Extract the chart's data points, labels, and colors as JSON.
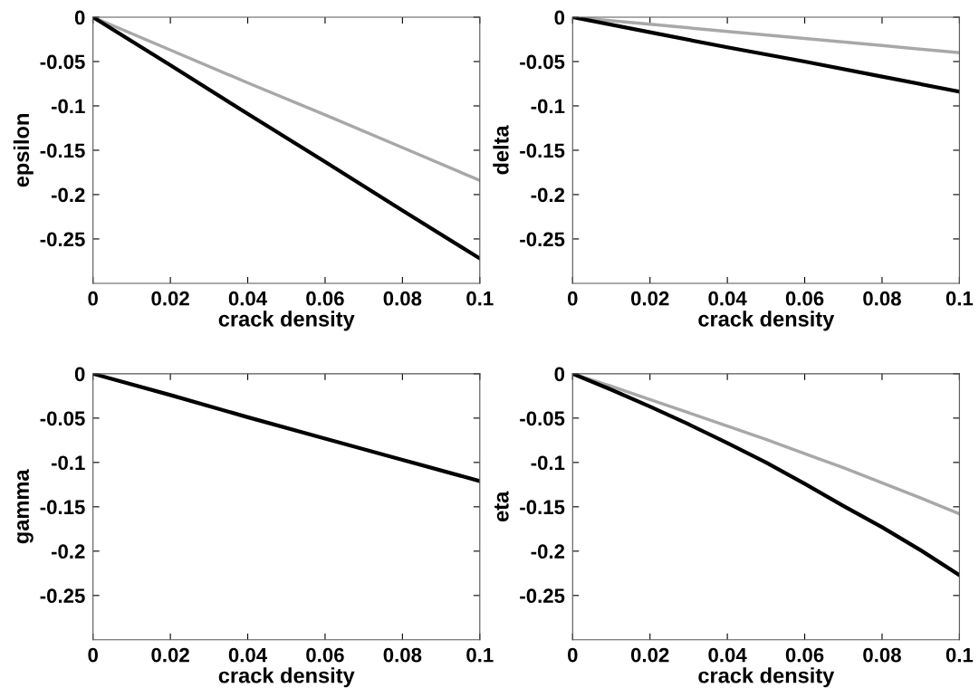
{
  "chart_data": [
    {
      "type": "line",
      "xlabel": "crack density",
      "ylabel": "epsilon",
      "xlim": [
        0,
        0.1
      ],
      "ylim": [
        -0.3,
        0
      ],
      "xticks": [
        0,
        0.02,
        0.04,
        0.06,
        0.08,
        0.1
      ],
      "yticks": [
        0,
        -0.05,
        -0.1,
        -0.15,
        -0.2,
        -0.25
      ],
      "grid": false,
      "x": [
        0,
        0.02,
        0.04,
        0.06,
        0.08,
        0.1
      ],
      "series": [
        {
          "color": "#a8a8a8",
          "values": [
            0,
            -0.037,
            -0.074,
            -0.11,
            -0.147,
            -0.184
          ]
        },
        {
          "color": "#000000",
          "values": [
            0,
            -0.054,
            -0.109,
            -0.163,
            -0.218,
            -0.272
          ]
        }
      ]
    },
    {
      "type": "line",
      "xlabel": "crack density",
      "ylabel": "delta",
      "xlim": [
        0,
        0.1
      ],
      "ylim": [
        -0.3,
        0
      ],
      "xticks": [
        0,
        0.02,
        0.04,
        0.06,
        0.08,
        0.1
      ],
      "yticks": [
        0,
        -0.05,
        -0.1,
        -0.15,
        -0.2,
        -0.25
      ],
      "grid": false,
      "x": [
        0,
        0.02,
        0.04,
        0.06,
        0.08,
        0.1
      ],
      "series": [
        {
          "color": "#a8a8a8",
          "values": [
            0,
            -0.008,
            -0.016,
            -0.024,
            -0.032,
            -0.04
          ]
        },
        {
          "color": "#000000",
          "values": [
            0,
            -0.017,
            -0.034,
            -0.05,
            -0.067,
            -0.084
          ]
        }
      ]
    },
    {
      "type": "line",
      "xlabel": "crack density",
      "ylabel": "gamma",
      "xlim": [
        0,
        0.1
      ],
      "ylim": [
        -0.3,
        0
      ],
      "xticks": [
        0,
        0.02,
        0.04,
        0.06,
        0.08,
        0.1
      ],
      "yticks": [
        0,
        -0.05,
        -0.1,
        -0.15,
        -0.2,
        -0.25
      ],
      "grid": false,
      "x": [
        0,
        0.02,
        0.04,
        0.06,
        0.08,
        0.1
      ],
      "series": [
        {
          "color": "#000000",
          "values": [
            0,
            -0.024,
            -0.049,
            -0.073,
            -0.097,
            -0.121
          ]
        }
      ]
    },
    {
      "type": "line",
      "xlabel": "crack density",
      "ylabel": "eta",
      "xlim": [
        0,
        0.1
      ],
      "ylim": [
        -0.3,
        0
      ],
      "xticks": [
        0,
        0.02,
        0.04,
        0.06,
        0.08,
        0.1
      ],
      "yticks": [
        0,
        -0.05,
        -0.1,
        -0.15,
        -0.2,
        -0.25
      ],
      "grid": false,
      "x": [
        0,
        0.01,
        0.02,
        0.03,
        0.04,
        0.05,
        0.06,
        0.07,
        0.08,
        0.09,
        0.1
      ],
      "series": [
        {
          "color": "#a8a8a8",
          "values": [
            0,
            -0.014,
            -0.029,
            -0.044,
            -0.059,
            -0.074,
            -0.09,
            -0.106,
            -0.123,
            -0.14,
            -0.158
          ]
        },
        {
          "color": "#000000",
          "values": [
            0,
            -0.018,
            -0.037,
            -0.057,
            -0.078,
            -0.1,
            -0.124,
            -0.149,
            -0.173,
            -0.199,
            -0.227
          ]
        }
      ]
    }
  ]
}
